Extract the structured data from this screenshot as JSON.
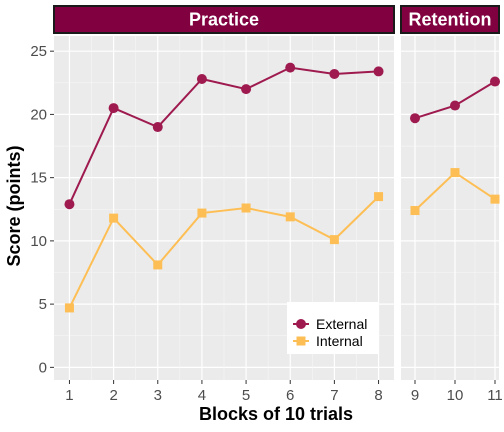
{
  "chart_data": {
    "type": "line",
    "panels": [
      {
        "name": "Practice",
        "x": [
          1,
          2,
          3,
          4,
          5,
          6,
          7,
          8
        ],
        "xlim": [
          0.65,
          8.35
        ]
      },
      {
        "name": "Retention",
        "x": [
          9,
          10,
          11
        ],
        "xlim": [
          8.65,
          11.1
        ]
      }
    ],
    "xlabel": "Blocks of 10 trials",
    "ylabel": "Score (points)",
    "ylim": [
      -1,
      26.2
    ],
    "yticks": [
      0,
      5,
      10,
      15,
      20,
      25
    ],
    "grid": true,
    "legend_position": "bottom-right of Practice panel",
    "series": [
      {
        "name": "External",
        "color": "#9e1a4f",
        "marker": "circle",
        "x": [
          1,
          2,
          3,
          4,
          5,
          6,
          7,
          8,
          9,
          10,
          11
        ],
        "values": [
          12.9,
          20.5,
          19.0,
          22.8,
          22.0,
          23.7,
          23.2,
          23.4,
          19.7,
          20.7,
          22.6
        ]
      },
      {
        "name": "Internal",
        "color": "#fdbf55",
        "marker": "square",
        "x": [
          1,
          2,
          3,
          4,
          5,
          6,
          7,
          8,
          9,
          10,
          11
        ],
        "values": [
          4.7,
          11.8,
          8.1,
          12.2,
          12.6,
          11.9,
          10.1,
          13.5,
          12.4,
          15.4,
          13.3
        ]
      }
    ],
    "strip_color": "#800040"
  }
}
